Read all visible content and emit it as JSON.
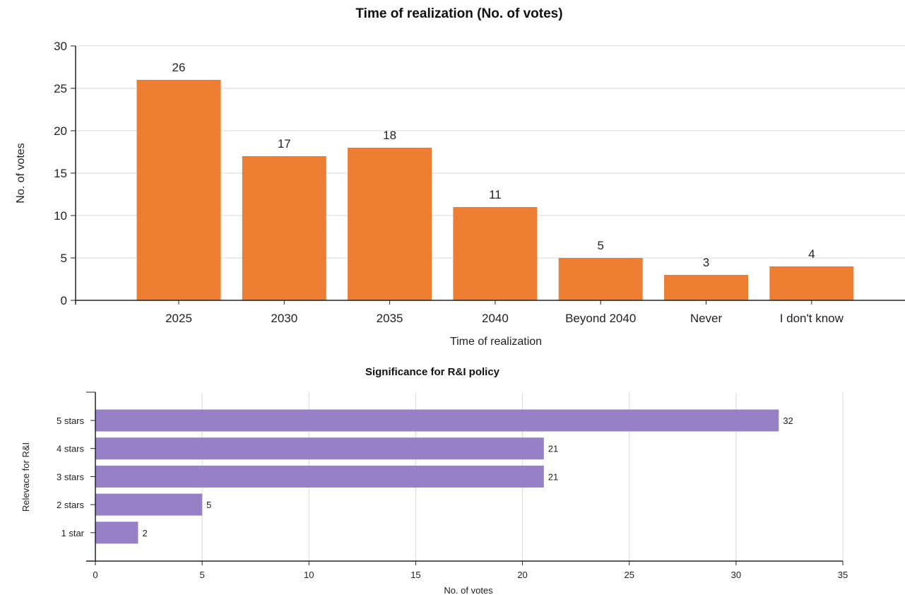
{
  "chart_data": [
    {
      "type": "bar",
      "orientation": "vertical",
      "title": "Time of realization (No. of votes)",
      "xlabel": "Time of realization",
      "ylabel": "No. of votes",
      "categories": [
        "2025",
        "2030",
        "2035",
        "2040",
        "Beyond 2040",
        "Never",
        "I don't know"
      ],
      "values": [
        26,
        17,
        18,
        11,
        5,
        3,
        4
      ],
      "ylim": [
        0,
        30
      ],
      "yticks": [
        0,
        5,
        10,
        15,
        20,
        25,
        30
      ],
      "grid": true,
      "color": "#ED7D31"
    },
    {
      "type": "bar",
      "orientation": "horizontal",
      "title": "Significance for R&I policy",
      "xlabel": "No. of votes",
      "ylabel": "Relevace for R&I",
      "categories": [
        "5 stars",
        "4 stars",
        "3 stars",
        "2 stars",
        "1 star"
      ],
      "values": [
        32,
        21,
        21,
        5,
        2
      ],
      "xlim": [
        0,
        35
      ],
      "xticks": [
        0,
        5,
        10,
        15,
        20,
        25,
        30,
        35
      ],
      "grid": true,
      "color": "#9680C6"
    }
  ]
}
